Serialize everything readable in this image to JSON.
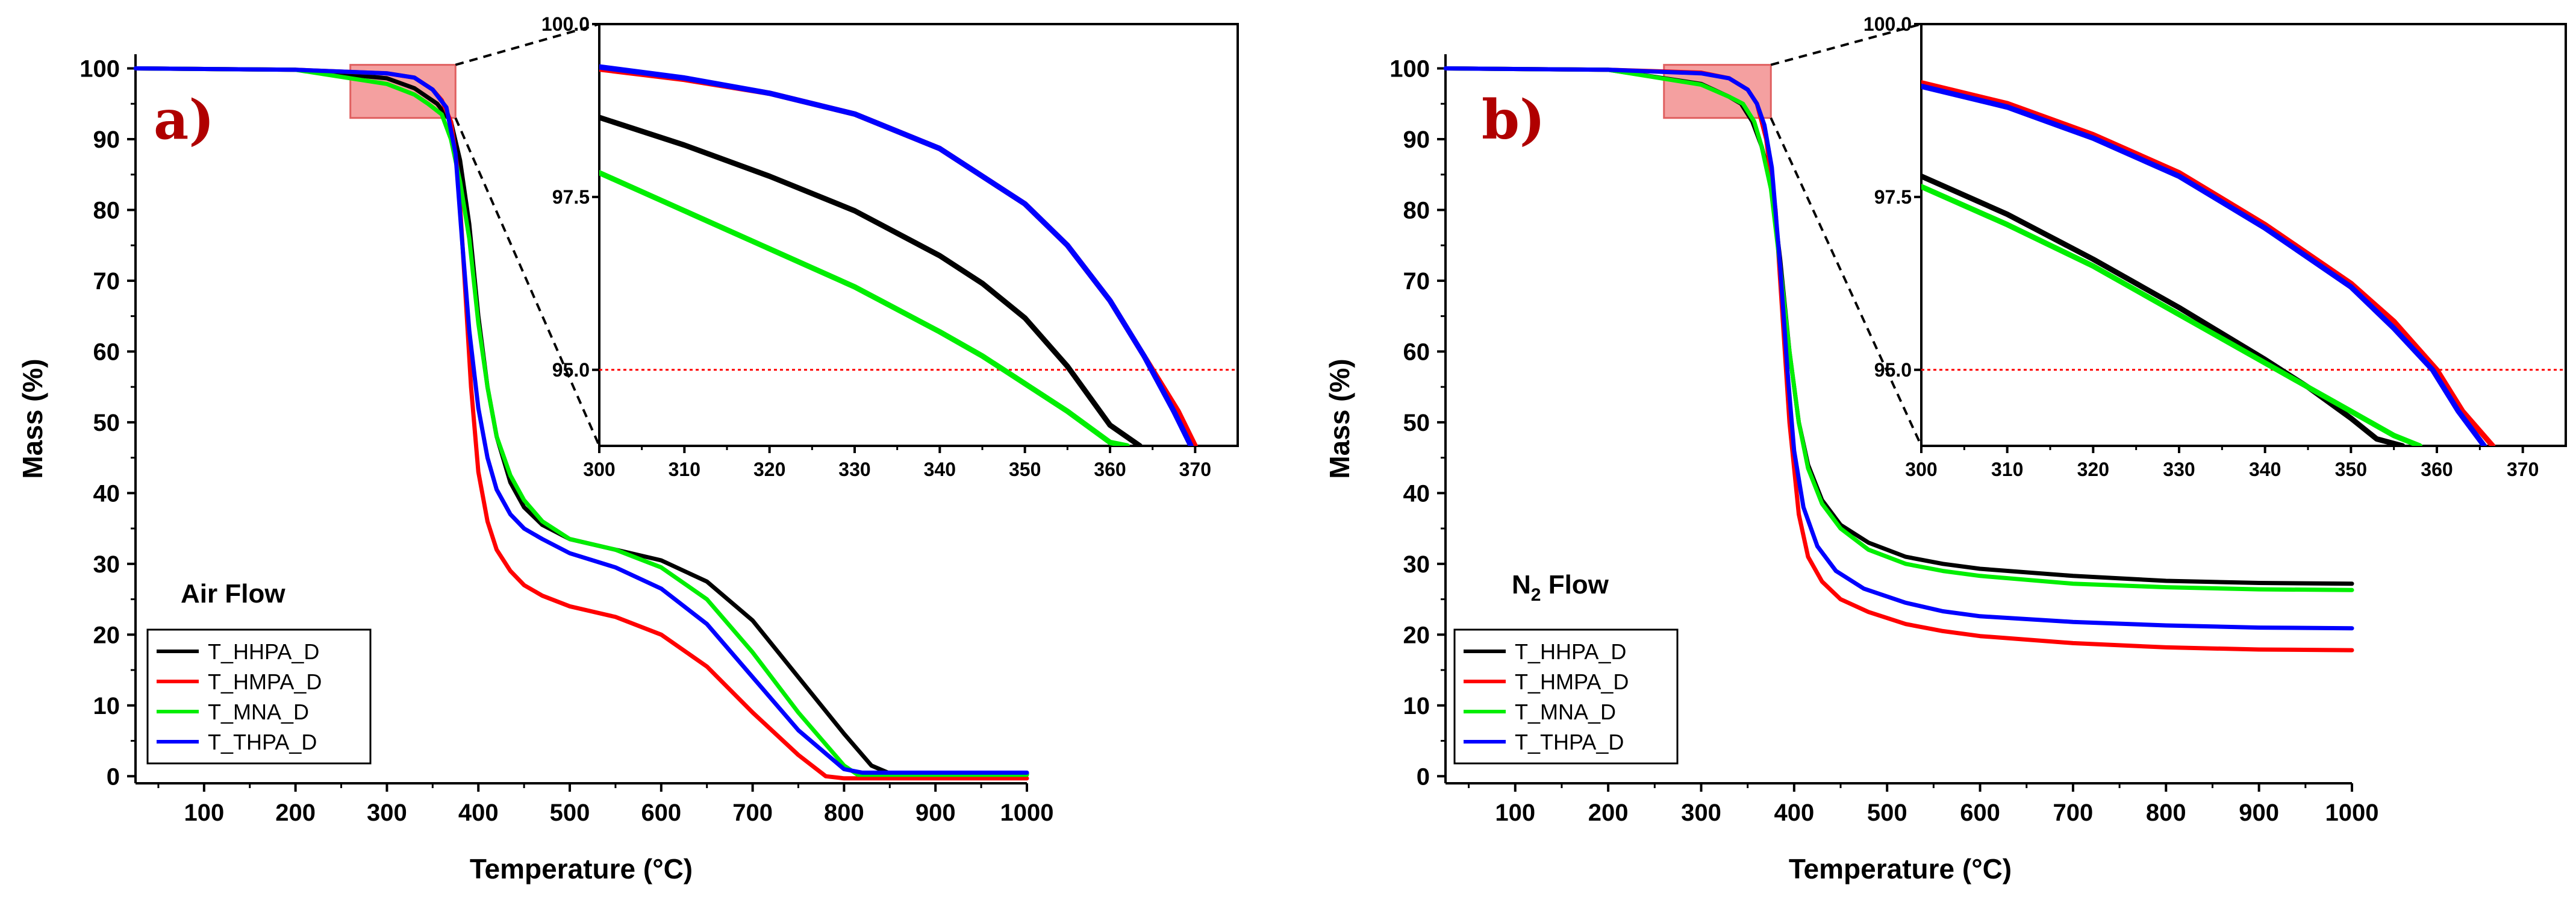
{
  "colors": {
    "T_HHPA_D": "#000000",
    "T_HMPA_D": "#ff0000",
    "T_MNA_D": "#00ee00",
    "T_THPA_D": "#0000ff",
    "panel_label": "#b00000",
    "zoom_box": "#f08080",
    "threshold": "#ff0000"
  },
  "chart_data": [
    {
      "type": "line",
      "panel_label": "a)",
      "atmosphere_label": "Air Flow",
      "xlabel": "Temperature (°C)",
      "ylabel": "Mass (%)",
      "xlim": [
        25,
        1000
      ],
      "ylim": [
        -1,
        102
      ],
      "xticks": [
        "100",
        "200",
        "300",
        "400",
        "500",
        "600",
        "700",
        "800",
        "900",
        "1000"
      ],
      "yticks": [
        "0",
        "10",
        "20",
        "30",
        "40",
        "50",
        "60",
        "70",
        "80",
        "90",
        "100"
      ],
      "legend": [
        "T_HHPA_D",
        "T_HMPA_D",
        "T_MNA_D",
        "T_THPA_D"
      ],
      "zoom_region": {
        "x": [
          260,
          375
        ],
        "y": [
          93,
          100.5
        ]
      },
      "series": [
        {
          "name": "T_HHPA_D",
          "x": [
            25,
            200,
            300,
            330,
            355,
            370,
            380,
            390,
            400,
            410,
            420,
            435,
            450,
            470,
            500,
            550,
            600,
            650,
            700,
            750,
            800,
            830,
            850,
            860,
            1000
          ],
          "y": [
            100,
            99.8,
            98.6,
            97.2,
            95,
            92.5,
            87,
            78,
            65,
            55,
            48,
            41.5,
            38,
            35.5,
            33.5,
            32,
            30.5,
            27.5,
            22,
            14,
            6,
            1.5,
            0.4,
            0.3,
            0.3
          ]
        },
        {
          "name": "T_HMPA_D",
          "x": [
            25,
            200,
            300,
            330,
            350,
            360,
            370,
            378,
            385,
            392,
            400,
            410,
            420,
            435,
            450,
            470,
            500,
            550,
            600,
            650,
            700,
            750,
            780,
            800,
            1000
          ],
          "y": [
            100,
            99.8,
            99.3,
            98.7,
            97,
            95.5,
            92.5,
            85,
            70,
            55,
            43,
            36,
            32,
            29,
            27,
            25.5,
            24,
            22.5,
            20,
            15.5,
            9,
            3,
            0,
            -0.3,
            -0.3
          ]
        },
        {
          "name": "T_MNA_D",
          "x": [
            25,
            200,
            300,
            330,
            345,
            360,
            370,
            380,
            390,
            400,
            410,
            420,
            435,
            450,
            470,
            500,
            550,
            600,
            650,
            700,
            750,
            800,
            815,
            1000
          ],
          "y": [
            100,
            99.8,
            97.8,
            96.3,
            95,
            93.5,
            90,
            84,
            76,
            64,
            55,
            48,
            42.5,
            39,
            36,
            33.5,
            32,
            29.5,
            25,
            17.5,
            9,
            1.5,
            0.2,
            0.2
          ]
        },
        {
          "name": "T_THPA_D",
          "x": [
            25,
            200,
            300,
            330,
            350,
            365,
            375,
            382,
            390,
            400,
            410,
            420,
            435,
            450,
            470,
            500,
            550,
            600,
            650,
            700,
            750,
            800,
            820,
            1000
          ],
          "y": [
            100,
            99.8,
            99.3,
            98.7,
            97,
            94.5,
            88,
            76,
            63,
            52,
            45,
            40.5,
            37,
            35,
            33.5,
            31.5,
            29.5,
            26.5,
            21.5,
            14,
            6.5,
            1,
            0.5,
            0.5
          ]
        }
      ]
    },
    {
      "type": "line",
      "panel_label": "b)",
      "atmosphere_label": "N2 Flow",
      "atmosphere_label_main": "N",
      "atmosphere_label_sub": "2",
      "atmosphere_label_rest": " Flow",
      "xlabel": "Temperature (°C)",
      "ylabel": "Mass (%)",
      "xlim": [
        25,
        1000
      ],
      "ylim": [
        -1,
        102
      ],
      "xticks": [
        "100",
        "200",
        "300",
        "400",
        "500",
        "600",
        "700",
        "800",
        "900",
        "1000"
      ],
      "yticks": [
        "0",
        "10",
        "20",
        "30",
        "40",
        "50",
        "60",
        "70",
        "80",
        "90",
        "100"
      ],
      "legend": [
        "T_HHPA_D",
        "T_HMPA_D",
        "T_MNA_D",
        "T_THPA_D"
      ],
      "zoom_region": {
        "x": [
          260,
          375
        ],
        "y": [
          93,
          100.5
        ]
      },
      "series": [
        {
          "name": "T_HHPA_D",
          "x": [
            25,
            200,
            300,
            330,
            343,
            355,
            365,
            375,
            385,
            395,
            405,
            415,
            430,
            450,
            480,
            520,
            560,
            600,
            700,
            800,
            900,
            1000
          ],
          "y": [
            100,
            99.8,
            97.8,
            96,
            95,
            92.5,
            89,
            84,
            73,
            60,
            50,
            44,
            39,
            35.5,
            33,
            31,
            30,
            29.3,
            28.3,
            27.6,
            27.3,
            27.2
          ]
        },
        {
          "name": "T_HMPA_D",
          "x": [
            25,
            200,
            300,
            330,
            350,
            360,
            370,
            380,
            387,
            395,
            405,
            415,
            430,
            450,
            480,
            520,
            560,
            600,
            700,
            800,
            900,
            1000
          ],
          "y": [
            100,
            99.8,
            99.4,
            98.6,
            97,
            95,
            90,
            80,
            66,
            50,
            37,
            31,
            27.5,
            25,
            23.2,
            21.5,
            20.5,
            19.8,
            18.8,
            18.2,
            17.9,
            17.8
          ]
        },
        {
          "name": "T_MNA_D",
          "x": [
            25,
            200,
            300,
            330,
            345,
            357,
            365,
            375,
            385,
            395,
            405,
            415,
            430,
            450,
            480,
            520,
            560,
            600,
            700,
            800,
            900,
            1000
          ],
          "y": [
            100,
            99.8,
            97.7,
            96,
            95,
            92.5,
            89,
            83,
            72,
            60,
            50,
            43.5,
            38.5,
            35,
            32,
            30,
            29,
            28.3,
            27.2,
            26.7,
            26.4,
            26.3
          ]
        },
        {
          "name": "T_THPA_D",
          "x": [
            25,
            200,
            300,
            330,
            350,
            360,
            368,
            376,
            385,
            393,
            400,
            410,
            425,
            445,
            475,
            520,
            560,
            600,
            700,
            800,
            900,
            1000
          ],
          "y": [
            100,
            99.8,
            99.3,
            98.6,
            97,
            95,
            92,
            86,
            72,
            57,
            46,
            38,
            32.5,
            29,
            26.5,
            24.5,
            23.3,
            22.6,
            21.8,
            21.3,
            21,
            20.9
          ]
        }
      ]
    }
  ],
  "insets": [
    {
      "xlim": [
        300,
        375
      ],
      "ylim": [
        93.9,
        100.0
      ],
      "xticks": [
        "300",
        "310",
        "320",
        "330",
        "340",
        "350",
        "360",
        "370"
      ],
      "yticks": [
        "100.0",
        "97.5",
        "95.0"
      ],
      "threshold": 95.0,
      "series": [
        {
          "name": "T_HHPA_D",
          "x": [
            300,
            310,
            320,
            330,
            340,
            345,
            350,
            355,
            360,
            363.5
          ],
          "y": [
            98.65,
            98.25,
            97.8,
            97.3,
            96.65,
            96.25,
            95.75,
            95.05,
            94.2,
            93.9
          ]
        },
        {
          "name": "T_MNA_D",
          "x": [
            300,
            310,
            320,
            330,
            340,
            345,
            350,
            355,
            360,
            362
          ],
          "y": [
            97.85,
            97.3,
            96.75,
            96.2,
            95.55,
            95.2,
            94.8,
            94.4,
            93.95,
            93.9
          ]
        },
        {
          "name": "T_HMPA_D",
          "x": [
            300,
            310,
            320,
            330,
            340,
            350,
            355,
            360,
            364,
            368,
            370
          ],
          "y": [
            99.35,
            99.2,
            99.0,
            98.7,
            98.2,
            97.4,
            96.8,
            96.0,
            95.2,
            94.4,
            93.9
          ]
        },
        {
          "name": "T_THPA_D",
          "x": [
            300,
            310,
            320,
            330,
            340,
            350,
            355,
            360,
            364,
            367.5,
            369.5
          ],
          "y": [
            99.38,
            99.22,
            99.0,
            98.7,
            98.2,
            97.4,
            96.8,
            96.0,
            95.2,
            94.4,
            93.9
          ]
        }
      ]
    },
    {
      "xlim": [
        300,
        375
      ],
      "ylim": [
        93.9,
        100.0
      ],
      "xticks": [
        "300",
        "310",
        "320",
        "330",
        "340",
        "350",
        "360",
        "370"
      ],
      "yticks": [
        "100.0",
        "97.5",
        "95.0"
      ],
      "threshold": 95.0,
      "series": [
        {
          "name": "T_HHPA_D",
          "x": [
            300,
            310,
            320,
            330,
            340,
            345,
            350,
            353,
            356
          ],
          "y": [
            97.8,
            97.25,
            96.6,
            95.9,
            95.15,
            94.75,
            94.3,
            94.0,
            93.9
          ]
        },
        {
          "name": "T_MNA_D",
          "x": [
            300,
            310,
            320,
            330,
            340,
            345,
            350,
            355,
            358
          ],
          "y": [
            97.65,
            97.1,
            96.5,
            95.8,
            95.1,
            94.75,
            94.4,
            94.05,
            93.9
          ]
        },
        {
          "name": "T_HMPA_D",
          "x": [
            300,
            310,
            320,
            330,
            340,
            350,
            355,
            360,
            363,
            366.5
          ],
          "y": [
            99.15,
            98.85,
            98.4,
            97.85,
            97.1,
            96.25,
            95.7,
            95.0,
            94.4,
            93.9
          ]
        },
        {
          "name": "T_THPA_D",
          "x": [
            300,
            310,
            320,
            330,
            340,
            350,
            355,
            359.5,
            362.5,
            365.5
          ],
          "y": [
            99.1,
            98.8,
            98.35,
            97.8,
            97.05,
            96.2,
            95.6,
            95.0,
            94.4,
            93.9
          ]
        }
      ]
    }
  ]
}
